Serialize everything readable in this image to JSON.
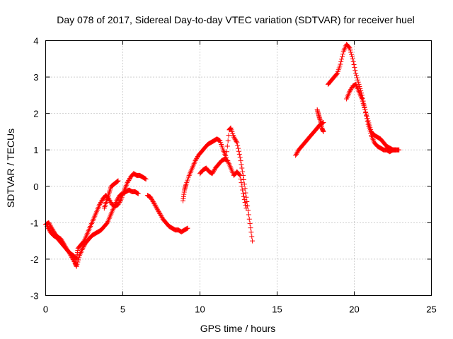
{
  "chart_data": {
    "type": "scatter",
    "title": "Day 078 of 2017, Sidereal Day-to-day VTEC variation (SDTVAR) for receiver huel",
    "xlabel": "GPS time / hours",
    "ylabel": "SDTVAR / TECUs",
    "xlim": [
      0,
      25
    ],
    "ylim": [
      -3,
      4
    ],
    "xticks": [
      0,
      5,
      10,
      15,
      20,
      25
    ],
    "yticks": [
      -3,
      -2,
      -1,
      0,
      1,
      2,
      3,
      4
    ],
    "xtick_labels": [
      "0",
      "5",
      "10",
      "15",
      "20",
      "25"
    ],
    "ytick_labels": [
      "-3",
      "-2",
      "-1",
      "0",
      "1",
      "2",
      "3",
      "4"
    ],
    "grid": true,
    "marker": "+",
    "color": "#ff0000",
    "series": [
      {
        "name": "arc-1a",
        "x": [
          0.0,
          0.2,
          0.4,
          0.6,
          0.8,
          1.0,
          1.2,
          1.4,
          1.6,
          1.8,
          2.0,
          2.1,
          2.3,
          2.5,
          2.7,
          2.9,
          3.1,
          3.3,
          3.5,
          3.7,
          3.9,
          4.1,
          4.3,
          4.5,
          4.7,
          4.9,
          5.1,
          5.3,
          5.5,
          5.7,
          5.9,
          6.1,
          6.3,
          6.5
        ],
        "y": [
          -1.05,
          -1.0,
          -1.15,
          -1.3,
          -1.4,
          -1.45,
          -1.6,
          -1.75,
          -1.85,
          -1.9,
          -2.0,
          -1.7,
          -1.6,
          -1.5,
          -1.3,
          -1.1,
          -0.9,
          -0.7,
          -0.5,
          -0.35,
          -0.25,
          -0.35,
          -0.5,
          -0.55,
          -0.5,
          -0.35,
          -0.1,
          0.1,
          0.25,
          0.35,
          0.3,
          0.3,
          0.25,
          0.2
        ]
      },
      {
        "name": "arc-1b",
        "x": [
          0.1,
          0.3,
          0.5,
          0.7,
          0.9,
          1.1,
          1.3,
          1.5,
          1.7,
          1.9,
          2.0,
          2.2,
          2.4,
          2.6,
          2.8,
          3.0,
          3.2,
          3.4,
          3.6,
          3.8,
          4.0,
          4.2,
          4.4,
          4.6,
          4.8,
          5.0,
          5.2,
          5.4,
          5.6,
          5.8,
          6.0
        ],
        "y": [
          -1.1,
          -1.25,
          -1.35,
          -1.4,
          -1.5,
          -1.6,
          -1.7,
          -1.8,
          -1.95,
          -2.1,
          -2.2,
          -1.9,
          -1.7,
          -1.55,
          -1.45,
          -1.35,
          -1.3,
          -1.25,
          -1.2,
          -1.1,
          -1.0,
          -0.8,
          -0.6,
          -0.4,
          -0.25,
          -0.2,
          -0.15,
          -0.1,
          -0.15,
          -0.15,
          -0.2
        ]
      },
      {
        "name": "arc-1c",
        "x": [
          3.8,
          3.95,
          4.1,
          4.25,
          4.4,
          4.55,
          4.7
        ],
        "y": [
          -0.6,
          -0.4,
          -0.2,
          0.0,
          0.05,
          0.1,
          0.15
        ]
      },
      {
        "name": "arc-2",
        "x": [
          6.6,
          6.8,
          7.0,
          7.2,
          7.4,
          7.6,
          7.8,
          8.0,
          8.2,
          8.4,
          8.6,
          8.8,
          9.0,
          9.2
        ],
        "y": [
          -0.25,
          -0.3,
          -0.45,
          -0.6,
          -0.75,
          -0.9,
          -1.0,
          -1.1,
          -1.15,
          -1.2,
          -1.2,
          -1.25,
          -1.2,
          -1.15
        ]
      },
      {
        "name": "arc-3a",
        "x": [
          8.9,
          9.0,
          9.1,
          9.3,
          9.5,
          9.7,
          9.9,
          10.1,
          10.3,
          10.5,
          10.7,
          10.9,
          11.1,
          11.3,
          11.5,
          11.7,
          11.9,
          12.0,
          12.2,
          12.4,
          12.6,
          12.8,
          13.0,
          13.2,
          13.4
        ],
        "y": [
          -0.4,
          -0.1,
          0.05,
          0.3,
          0.5,
          0.7,
          0.85,
          0.95,
          1.05,
          1.15,
          1.2,
          1.25,
          1.3,
          1.25,
          1.0,
          0.8,
          1.55,
          1.6,
          1.35,
          1.2,
          0.8,
          0.3,
          -0.3,
          -0.9,
          -1.5
        ]
      },
      {
        "name": "arc-3b",
        "x": [
          10.0,
          10.2,
          10.4,
          10.6,
          10.8,
          11.0,
          11.2,
          11.4,
          11.6,
          11.8,
          12.0,
          12.2,
          12.4,
          12.6,
          12.8,
          13.0
        ],
        "y": [
          0.35,
          0.45,
          0.5,
          0.4,
          0.35,
          0.5,
          0.6,
          0.7,
          0.75,
          0.7,
          0.5,
          0.3,
          0.4,
          0.3,
          -0.2,
          -0.6
        ]
      },
      {
        "name": "arc-4",
        "x": [
          16.2,
          16.4,
          16.6,
          16.8,
          17.0,
          17.2,
          17.4,
          17.6,
          17.8,
          18.0
        ],
        "y": [
          0.85,
          1.0,
          1.1,
          1.2,
          1.3,
          1.4,
          1.5,
          1.6,
          1.7,
          1.75
        ]
      },
      {
        "name": "arc-5",
        "x": [
          17.6,
          17.7,
          17.8,
          17.9,
          18.0
        ],
        "y": [
          2.1,
          1.95,
          1.8,
          1.6,
          1.5
        ]
      },
      {
        "name": "arc-6a",
        "x": [
          18.3,
          18.5,
          18.7,
          18.9,
          19.1,
          19.3,
          19.5,
          19.7,
          19.9,
          20.1,
          20.3,
          20.5,
          20.7,
          20.9,
          21.1,
          21.3,
          21.5,
          21.7,
          21.9,
          22.1,
          22.3,
          22.5,
          22.7,
          22.9
        ],
        "y": [
          2.8,
          2.9,
          3.0,
          3.1,
          3.35,
          3.7,
          3.9,
          3.8,
          3.5,
          3.1,
          2.8,
          2.5,
          2.1,
          1.7,
          1.4,
          1.2,
          1.1,
          1.05,
          1.0,
          1.0,
          0.95,
          1.0,
          1.0,
          1.0
        ]
      },
      {
        "name": "arc-6b",
        "x": [
          19.5,
          19.7,
          19.9,
          20.1,
          20.3,
          20.5,
          20.7,
          20.9,
          21.1,
          21.3,
          21.5,
          21.7,
          21.9,
          22.1,
          22.3,
          22.5,
          22.7
        ],
        "y": [
          2.4,
          2.6,
          2.75,
          2.8,
          2.6,
          2.4,
          2.1,
          1.8,
          1.5,
          1.4,
          1.35,
          1.3,
          1.2,
          1.1,
          1.05,
          1.0,
          1.0
        ]
      }
    ]
  }
}
